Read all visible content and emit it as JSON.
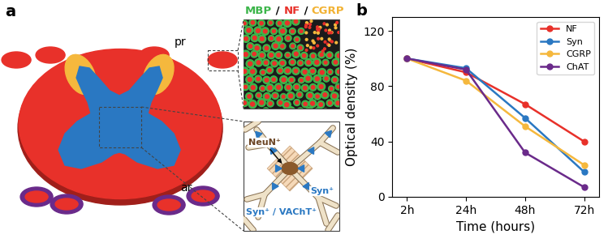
{
  "panel_labels": [
    "a",
    "b"
  ],
  "diagram": {
    "root_labels": {
      "posterior": "pr",
      "anterior": "ar"
    },
    "inset_title": [
      {
        "text": "MBP",
        "color": "#3cb54a"
      },
      {
        "text": " / ",
        "color": "#000000"
      },
      {
        "text": "NF",
        "color": "#e8312a"
      },
      {
        "text": " / ",
        "color": "#000000"
      },
      {
        "text": "CGRP",
        "color": "#f2b233"
      }
    ],
    "neuron_labels": {
      "soma": "NeuN⁺",
      "synapse": "Syn⁺",
      "cholinergic_synapse": "Syn⁺ / VAChT⁺"
    }
  },
  "chart_data": {
    "type": "line",
    "x_label": "Time (hours)",
    "y_label": "Optical density (%)",
    "categories": [
      "2h",
      "24h",
      "48h",
      "72h"
    ],
    "ylim": [
      0,
      130
    ],
    "yticks": [
      0,
      40,
      80,
      120
    ],
    "legend": "upper right",
    "marker": "o",
    "series": [
      {
        "name": "NF",
        "color": "#e8312a",
        "values": [
          100,
          90,
          67,
          40
        ]
      },
      {
        "name": "Syn",
        "color": "#2a78c2",
        "values": [
          100,
          93,
          57,
          18
        ]
      },
      {
        "name": "CGRP",
        "color": "#f5b83d",
        "values": [
          100,
          84,
          51,
          23
        ]
      },
      {
        "name": "ChAT",
        "color": "#6a2a8a",
        "values": [
          100,
          92,
          32,
          7
        ]
      }
    ]
  }
}
